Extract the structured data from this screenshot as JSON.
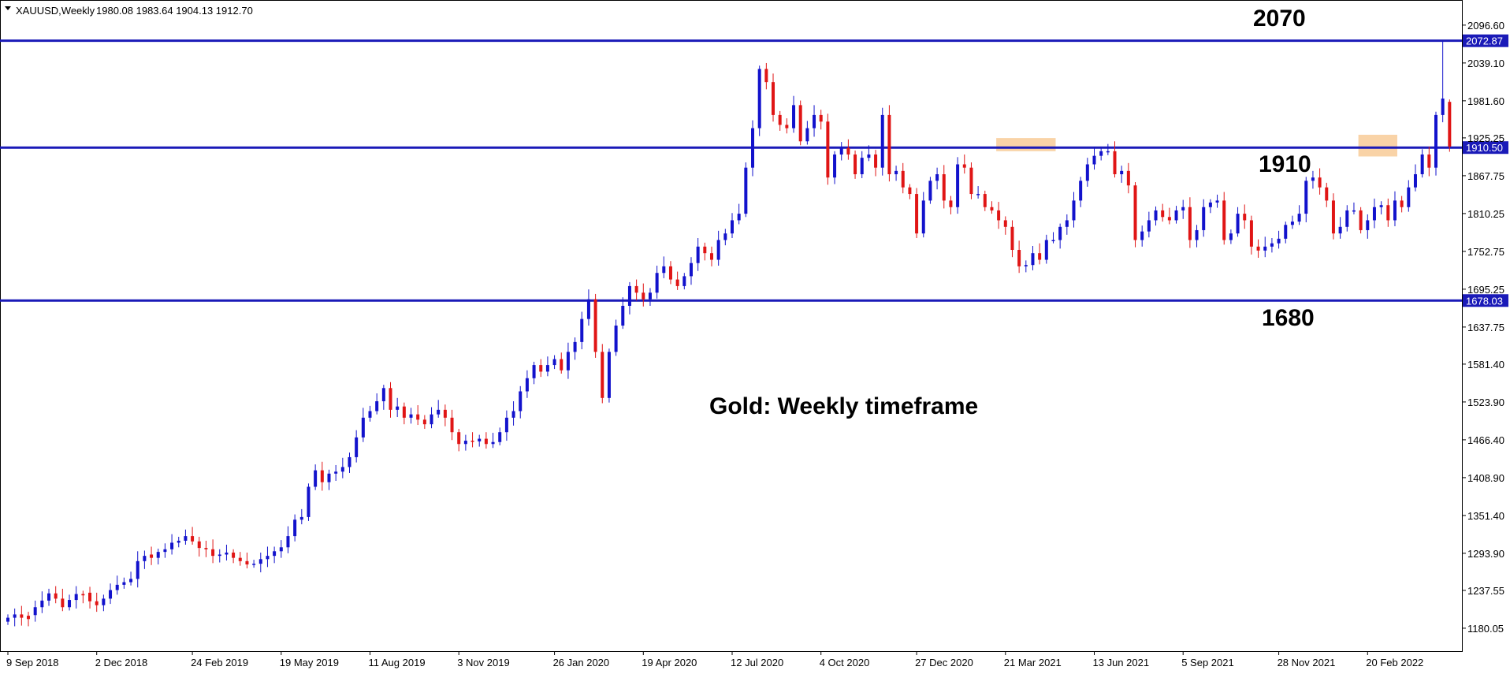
{
  "header": {
    "symbol_text": "XAUUSD,Weekly",
    "ohlc_text": "1980.08 1983.64 1904.13 1912.70"
  },
  "annotation_text": "Gold: Weekly timeframe",
  "colors": {
    "up_candle": "#1212cc",
    "down_candle": "#e01515",
    "level_line": "#1a1ab8",
    "highlight": "#f7c48a",
    "frame": "#000000"
  },
  "chart_data": {
    "type": "candlestick",
    "title": "Gold: Weekly timeframe",
    "symbol": "XAUUSD",
    "timeframe": "Weekly",
    "ylim": [
      1150,
      2130
    ],
    "y_ticks": [
      "2096.60",
      "2039.10",
      "1981.60",
      "1925.25",
      "1867.75",
      "1810.25",
      "1752.75",
      "1695.25",
      "1637.75",
      "1581.40",
      "1523.90",
      "1466.40",
      "1408.90",
      "1351.40",
      "1293.90",
      "1237.55",
      "1180.05"
    ],
    "x_ticks": [
      "9 Sep 2018",
      "2 Dec 2018",
      "24 Feb 2019",
      "19 May 2019",
      "11 Aug 2019",
      "3 Nov 2019",
      "26 Jan 2020",
      "19 Apr 2020",
      "12 Jul 2020",
      "4 Oct 2020",
      "27 Dec 2020",
      "21 Mar 2021",
      "13 Jun 2021",
      "5 Sep 2021",
      "28 Nov 2021",
      "20 Feb 2022"
    ],
    "levels": [
      {
        "price": 2072.87,
        "tag": "2072.87",
        "label": "2070"
      },
      {
        "price": 1910.5,
        "tag": "1910.50",
        "label": "1910"
      },
      {
        "price": 1678.03,
        "tag": "1678.03",
        "label": "1680"
      }
    ],
    "highlight_zones": [
      {
        "from": "21 Mar 2021",
        "weeks": 8,
        "price_low": 1905,
        "price_high": 1925
      },
      {
        "from": "20 Feb 2022",
        "weeks": 5,
        "price_low": 1897,
        "price_high": 1930
      }
    ],
    "closes": [
      1196,
      1201,
      1196,
      1194,
      1212,
      1222,
      1233,
      1225,
      1212,
      1223,
      1232,
      1230,
      1221,
      1215,
      1225,
      1238,
      1246,
      1250,
      1255,
      1282,
      1290,
      1287,
      1296,
      1300,
      1310,
      1313,
      1320,
      1312,
      1302,
      1300,
      1290,
      1292,
      1295,
      1287,
      1282,
      1277,
      1278,
      1285,
      1290,
      1297,
      1303,
      1320,
      1345,
      1349,
      1395,
      1420,
      1402,
      1415,
      1418,
      1425,
      1440,
      1470,
      1500,
      1510,
      1525,
      1545,
      1512,
      1517,
      1500,
      1505,
      1497,
      1490,
      1505,
      1512,
      1500,
      1478,
      1460,
      1465,
      1464,
      1468,
      1460,
      1463,
      1478,
      1500,
      1510,
      1540,
      1560,
      1580,
      1570,
      1580,
      1589,
      1572,
      1600,
      1615,
      1650,
      1680,
      1600,
      1530,
      1600,
      1640,
      1670,
      1700,
      1690,
      1680,
      1690,
      1720,
      1730,
      1710,
      1700,
      1715,
      1735,
      1760,
      1750,
      1740,
      1770,
      1780,
      1800,
      1810,
      1880,
      1940,
      2030,
      2010,
      1960,
      1945,
      1940,
      1975,
      1920,
      1940,
      1960,
      1950,
      1865,
      1900,
      1910,
      1900,
      1870,
      1895,
      1900,
      1880,
      1960,
      1870,
      1875,
      1850,
      1840,
      1780,
      1830,
      1860,
      1870,
      1830,
      1820,
      1885,
      1880,
      1840,
      1840,
      1820,
      1815,
      1800,
      1790,
      1755,
      1730,
      1732,
      1750,
      1740,
      1770,
      1770,
      1790,
      1800,
      1830,
      1860,
      1885,
      1898,
      1905,
      1905,
      1870,
      1875,
      1853,
      1770,
      1783,
      1800,
      1815,
      1805,
      1800,
      1815,
      1820,
      1770,
      1785,
      1820,
      1827,
      1830,
      1770,
      1780,
      1810,
      1800,
      1760,
      1754,
      1760,
      1765,
      1772,
      1793,
      1798,
      1810,
      1860,
      1865,
      1850,
      1830,
      1780,
      1790,
      1815,
      1815,
      1785,
      1800,
      1820,
      1823,
      1800,
      1830,
      1820,
      1850,
      1870,
      1900,
      1880,
      1960,
      1985,
      1912
    ],
    "opens": [
      1190,
      1196,
      1201,
      1199,
      1200,
      1212,
      1222,
      1233,
      1225,
      1212,
      1223,
      1232,
      1234,
      1221,
      1215,
      1225,
      1238,
      1246,
      1250,
      1255,
      1282,
      1292,
      1287,
      1296,
      1300,
      1310,
      1313,
      1320,
      1312,
      1302,
      1300,
      1290,
      1292,
      1295,
      1287,
      1282,
      1277,
      1278,
      1285,
      1290,
      1297,
      1303,
      1320,
      1345,
      1349,
      1395,
      1420,
      1402,
      1415,
      1418,
      1425,
      1440,
      1470,
      1500,
      1510,
      1525,
      1545,
      1512,
      1517,
      1500,
      1505,
      1497,
      1490,
      1505,
      1512,
      1500,
      1478,
      1460,
      1465,
      1464,
      1468,
      1460,
      1463,
      1478,
      1500,
      1510,
      1540,
      1560,
      1580,
      1570,
      1580,
      1589,
      1572,
      1600,
      1615,
      1650,
      1680,
      1600,
      1530,
      1600,
      1640,
      1670,
      1700,
      1690,
      1680,
      1690,
      1720,
      1730,
      1710,
      1700,
      1715,
      1735,
      1760,
      1750,
      1740,
      1770,
      1780,
      1800,
      1810,
      1880,
      1940,
      2030,
      2010,
      1960,
      1945,
      1940,
      1975,
      1920,
      1940,
      1960,
      1950,
      1865,
      1900,
      1910,
      1900,
      1870,
      1895,
      1900,
      1880,
      1960,
      1870,
      1875,
      1850,
      1840,
      1780,
      1830,
      1860,
      1870,
      1830,
      1820,
      1885,
      1880,
      1840,
      1840,
      1820,
      1815,
      1800,
      1790,
      1755,
      1730,
      1732,
      1750,
      1740,
      1770,
      1770,
      1790,
      1800,
      1830,
      1860,
      1885,
      1898,
      1905,
      1905,
      1870,
      1875,
      1853,
      1770,
      1783,
      1800,
      1815,
      1805,
      1800,
      1815,
      1820,
      1770,
      1785,
      1820,
      1827,
      1830,
      1770,
      1780,
      1810,
      1800,
      1760,
      1754,
      1760,
      1765,
      1772,
      1793,
      1798,
      1810,
      1860,
      1865,
      1850,
      1830,
      1780,
      1790,
      1815,
      1815,
      1785,
      1800,
      1820,
      1823,
      1800,
      1830,
      1820,
      1850,
      1870,
      1900,
      1880,
      1960,
      1980
    ],
    "last_bar": {
      "open": 1980.08,
      "high": 1983.64,
      "low": 1904.13,
      "close": 1912.7
    }
  }
}
